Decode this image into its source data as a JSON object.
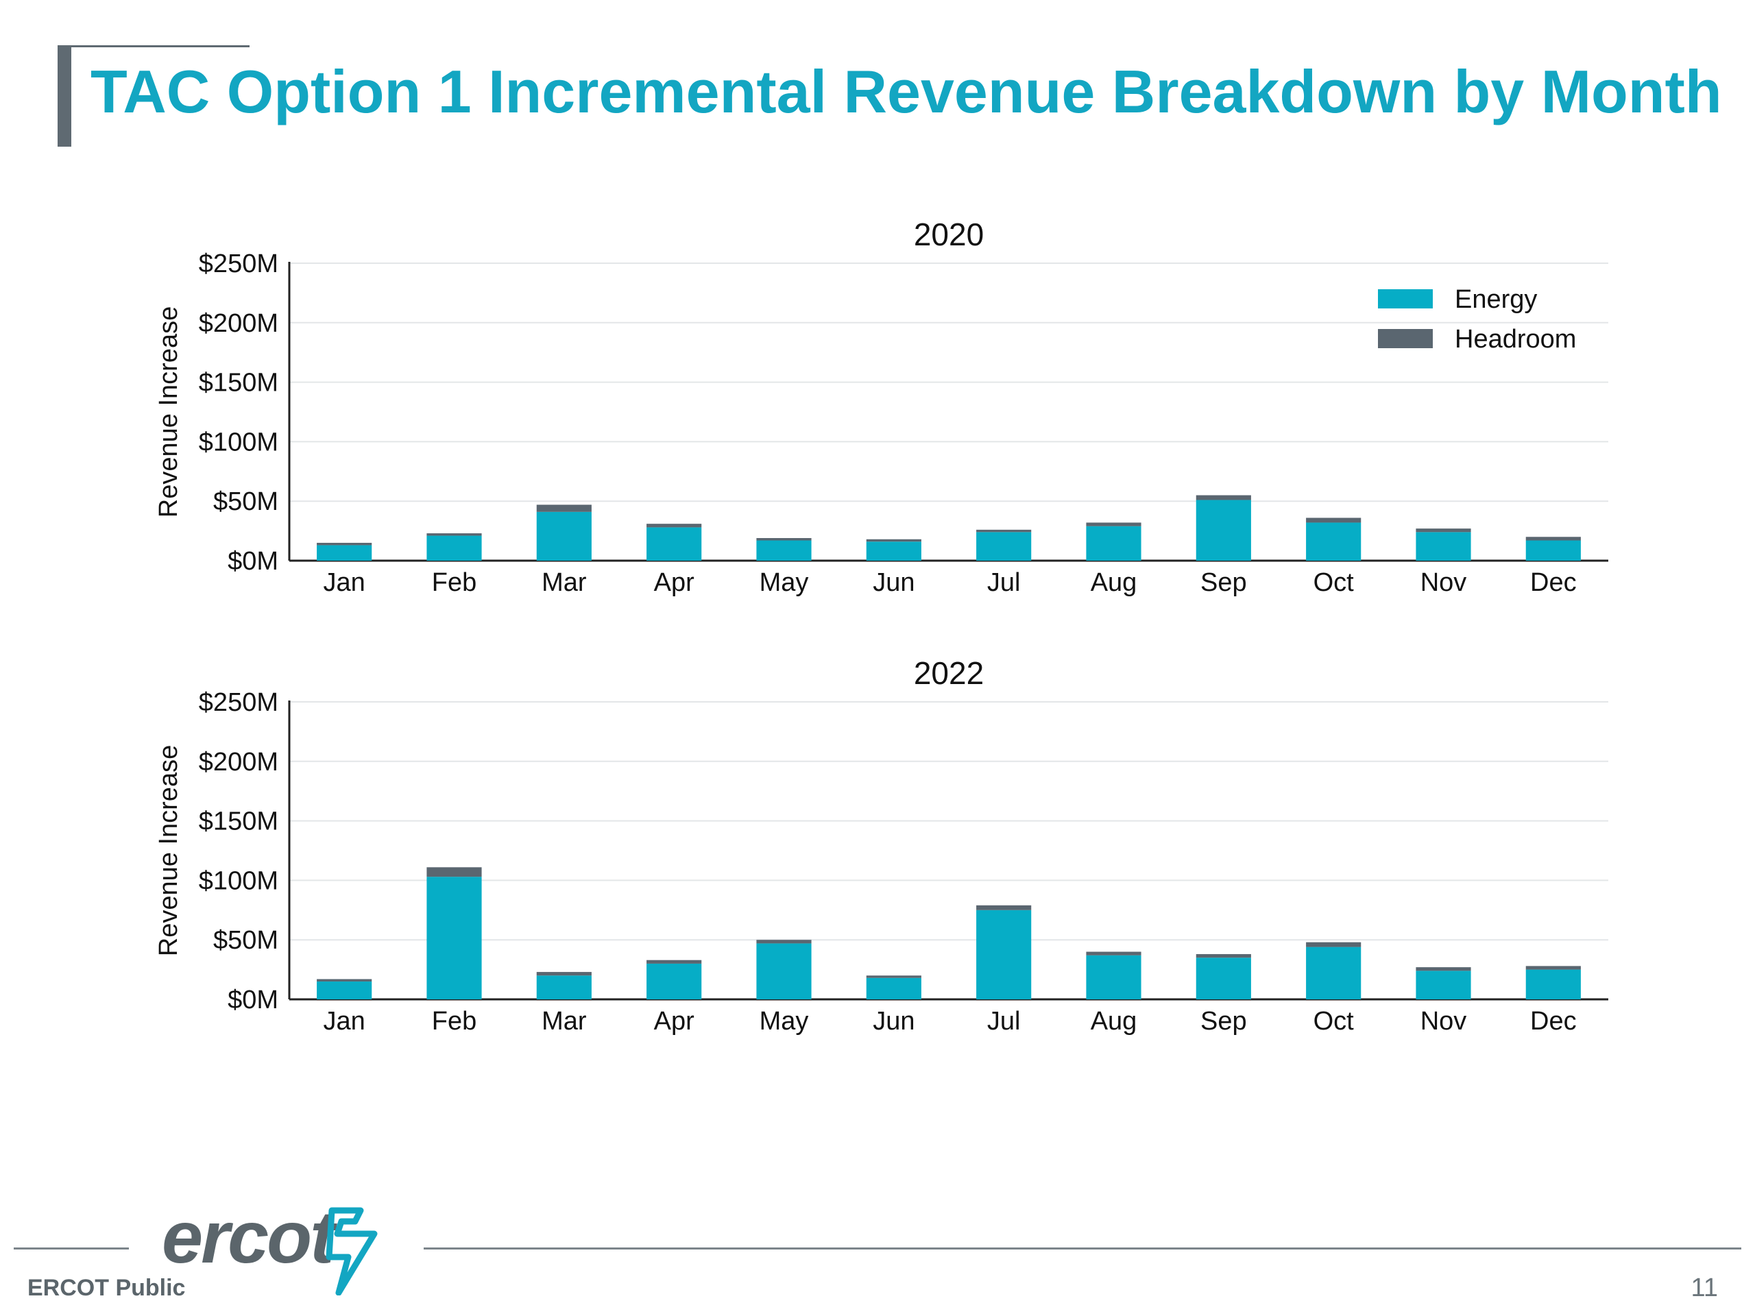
{
  "slide": {
    "title": "TAC Option 1 Incremental Revenue Breakdown by Month",
    "footer_label": "ERCOT Public",
    "page_number": "11",
    "logo_text": "ercot"
  },
  "colors": {
    "energy": "#06adc6",
    "headroom": "#5a6670",
    "title": "#13a6c2"
  },
  "chart_data": [
    {
      "type": "bar",
      "stacked": true,
      "title": "2020",
      "xlabel": "",
      "ylabel": "Revenue Increase",
      "ylim": [
        0,
        250
      ],
      "y_ticks": [
        "$0M",
        "$50M",
        "$100M",
        "$150M",
        "$200M",
        "$250M"
      ],
      "y_tick_values": [
        0,
        50,
        100,
        150,
        200,
        250
      ],
      "grid": true,
      "legend": "top-right",
      "categories": [
        "Jan",
        "Feb",
        "Mar",
        "Apr",
        "May",
        "Jun",
        "Jul",
        "Aug",
        "Sep",
        "Oct",
        "Nov",
        "Dec"
      ],
      "series": [
        {
          "name": "Energy",
          "color": "#06adc6",
          "values": [
            13,
            21,
            41,
            28,
            17,
            16,
            24,
            29,
            51,
            32,
            24,
            17
          ]
        },
        {
          "name": "Headroom",
          "color": "#5a6670",
          "values": [
            2,
            2,
            6,
            3,
            2,
            2,
            2,
            3,
            4,
            4,
            3,
            3
          ]
        }
      ]
    },
    {
      "type": "bar",
      "stacked": true,
      "title": "2022",
      "xlabel": "",
      "ylabel": "Revenue Increase",
      "ylim": [
        0,
        250
      ],
      "y_ticks": [
        "$0M",
        "$50M",
        "$100M",
        "$150M",
        "$200M",
        "$250M"
      ],
      "y_tick_values": [
        0,
        50,
        100,
        150,
        200,
        250
      ],
      "grid": true,
      "legend": "none",
      "categories": [
        "Jan",
        "Feb",
        "Mar",
        "Apr",
        "May",
        "Jun",
        "Jul",
        "Aug",
        "Sep",
        "Oct",
        "Nov",
        "Dec"
      ],
      "series": [
        {
          "name": "Energy",
          "color": "#06adc6",
          "values": [
            15,
            103,
            20,
            30,
            47,
            18,
            75,
            37,
            35,
            44,
            24,
            25
          ]
        },
        {
          "name": "Headroom",
          "color": "#5a6670",
          "values": [
            2,
            8,
            3,
            3,
            3,
            2,
            4,
            3,
            3,
            4,
            3,
            3
          ]
        }
      ]
    }
  ]
}
